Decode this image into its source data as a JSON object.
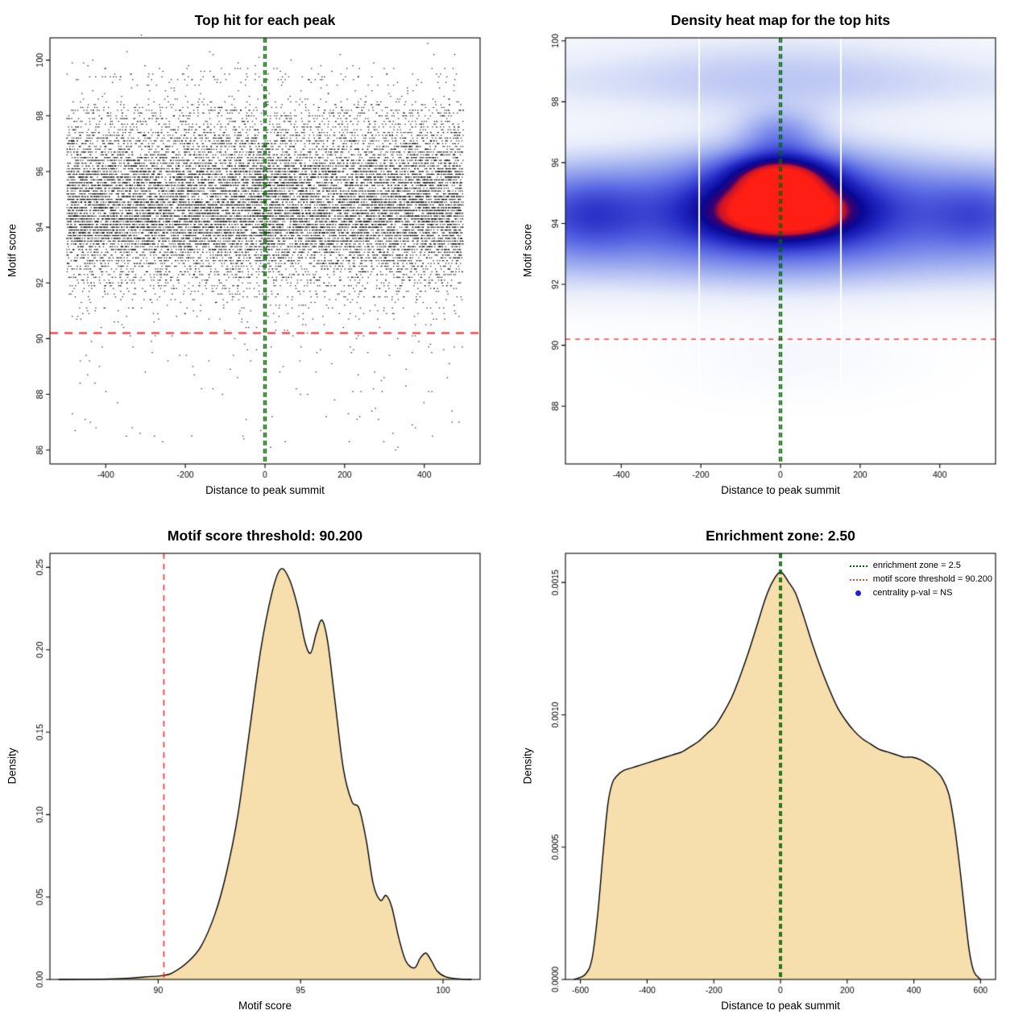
{
  "colors": {
    "threshold": "#ff2020",
    "zone": "#006400",
    "area_fill": "#f6dfad",
    "curve": "#000000",
    "point": "rgba(0,0,0,0.85)"
  },
  "chart_data": [
    {
      "type": "scatter",
      "title": "Top hit for each peak",
      "xlabel": "Distance to peak summit",
      "ylabel": "Motif score",
      "xlim": [
        -540,
        540
      ],
      "ylim": [
        85.5,
        100.8
      ],
      "xticks": [
        -400,
        -200,
        0,
        200,
        400
      ],
      "yticks": [
        86,
        88,
        90,
        92,
        94,
        96,
        98,
        100
      ],
      "x_range": [
        -498,
        498
      ],
      "n_points": 16000,
      "seed": 20,
      "score_step": 0.1,
      "outlier_fraction": 0.004,
      "outlier_range": [
        86,
        90.3
      ],
      "threshold_y": 90.2,
      "zone_x": [
        -2.5,
        2.5
      ]
    },
    {
      "type": "heatmap",
      "title": "Density heat map for the top hits",
      "xlabel": "Distance to peak summit",
      "ylabel": "Motif score",
      "xlim": [
        -540,
        540
      ],
      "ylim": [
        86.1,
        100.1
      ],
      "xticks": [
        -400,
        -200,
        0,
        200,
        400
      ],
      "yticks": [
        88,
        90,
        92,
        94,
        96,
        98,
        100
      ],
      "threshold_y": 90.2,
      "zone_x": [
        -2.5,
        2.5
      ],
      "white_lines_x": [
        -205,
        152
      ],
      "blobs": [
        {
          "x": 0,
          "sx": 3000,
          "y": 94.5,
          "sy": 1.25,
          "a": 0.34
        },
        {
          "x": 0,
          "sx": 230,
          "y": 94.6,
          "sy": 1.35,
          "a": 0.36
        },
        {
          "x": 5,
          "sx": 120,
          "y": 94.4,
          "sy": 0.62,
          "a": 0.56
        },
        {
          "x": 0,
          "sx": 95,
          "y": 95.65,
          "sy": 0.5,
          "a": 0.5
        },
        {
          "x": 0,
          "sx": 70,
          "y": 96.95,
          "sy": 0.55,
          "a": 0.22
        },
        {
          "x": 0,
          "sx": 3000,
          "y": 98.6,
          "sy": 0.75,
          "a": 0.1
        },
        {
          "x": 0,
          "sx": 300,
          "y": 98.7,
          "sy": 0.9,
          "a": 0.08
        },
        {
          "x": 0,
          "sx": 400,
          "y": 100,
          "sy": 0.8,
          "a": 0.06
        },
        {
          "x": 0,
          "sx": 3000,
          "y": 92.8,
          "sy": 1.0,
          "a": 0.12
        },
        {
          "x": -480,
          "sx": 90,
          "y": 94.3,
          "sy": 0.9,
          "a": 0.18
        },
        {
          "x": 490,
          "sx": 80,
          "y": 94.3,
          "sy": 0.8,
          "a": 0.14
        },
        {
          "x": 30,
          "sx": 200,
          "y": 89.5,
          "sy": 0.8,
          "a": 0.04
        }
      ],
      "color_stops": [
        [
          0,
          255,
          255,
          255
        ],
        [
          0.1,
          232,
          237,
          250
        ],
        [
          0.25,
          166,
          180,
          240
        ],
        [
          0.45,
          90,
          105,
          228
        ],
        [
          0.62,
          35,
          40,
          195
        ],
        [
          0.75,
          8,
          8,
          150
        ],
        [
          0.84,
          60,
          0,
          110
        ],
        [
          0.9,
          200,
          20,
          40
        ],
        [
          1,
          255,
          30,
          20
        ]
      ]
    },
    {
      "type": "area",
      "title": "Motif score threshold: 90.200",
      "xlabel": "Motif score",
      "ylabel": "Density",
      "xlim": [
        86.2,
        101.3
      ],
      "ylim": [
        0,
        0.2585
      ],
      "xticks": [
        90,
        95,
        100
      ],
      "yticks": [
        0,
        0.05,
        0.1,
        0.15,
        0.2,
        0.25
      ],
      "ytick_labels": [
        "0.00",
        "0.05",
        "0.10",
        "0.15",
        "0.20",
        "0.25"
      ],
      "threshold_x": 90.2,
      "curve": [
        [
          86.5,
          0
        ],
        [
          88,
          0.0002
        ],
        [
          89,
          0.0008
        ],
        [
          89.5,
          0.0015
        ],
        [
          90,
          0.002
        ],
        [
          90.2,
          0.0025
        ],
        [
          90.5,
          0.004
        ],
        [
          91,
          0.01
        ],
        [
          91.5,
          0.02
        ],
        [
          92,
          0.04
        ],
        [
          92.4,
          0.065
        ],
        [
          92.8,
          0.1
        ],
        [
          93.2,
          0.15
        ],
        [
          93.6,
          0.2
        ],
        [
          94,
          0.235
        ],
        [
          94.3,
          0.249
        ],
        [
          94.6,
          0.243
        ],
        [
          94.9,
          0.226
        ],
        [
          95.15,
          0.205
        ],
        [
          95.35,
          0.198
        ],
        [
          95.55,
          0.21
        ],
        [
          95.75,
          0.218
        ],
        [
          95.95,
          0.205
        ],
        [
          96.2,
          0.17
        ],
        [
          96.5,
          0.128
        ],
        [
          96.8,
          0.108
        ],
        [
          97.05,
          0.104
        ],
        [
          97.3,
          0.085
        ],
        [
          97.55,
          0.058
        ],
        [
          97.8,
          0.048
        ],
        [
          98,
          0.051
        ],
        [
          98.2,
          0.044
        ],
        [
          98.45,
          0.025
        ],
        [
          98.7,
          0.011
        ],
        [
          99,
          0.007
        ],
        [
          99.2,
          0.013
        ],
        [
          99.4,
          0.016
        ],
        [
          99.6,
          0.011
        ],
        [
          99.8,
          0.005
        ],
        [
          100.1,
          0.0015
        ],
        [
          100.6,
          0.0003
        ],
        [
          101,
          0
        ]
      ]
    },
    {
      "type": "area",
      "title": "Enrichment zone: 2.50",
      "xlabel": "Distance to peak summit",
      "ylabel": "Density",
      "xlim": [
        -645,
        645
      ],
      "ylim": [
        0,
        0.00161
      ],
      "xticks": [
        -600,
        -400,
        -200,
        0,
        200,
        400,
        600
      ],
      "yticks": [
        0,
        0.0005,
        0.001,
        0.0015
      ],
      "ytick_labels": [
        "0.0000",
        "0.0005",
        "0.0010",
        "0.0015"
      ],
      "zone_x": [
        -2.5,
        2.5
      ],
      "legend": [
        {
          "type": "dotted-line",
          "color": "#006400",
          "label": "enrichment zone = 2.5"
        },
        {
          "type": "dotted-line",
          "color": "#ff3b30",
          "label": "motif score threshold = 90.200"
        },
        {
          "type": "dot",
          "color": "#2222cc",
          "label": "centrality p-val = NS"
        }
      ],
      "curve": [
        [
          -620,
          0
        ],
        [
          -585,
          2e-05
        ],
        [
          -565,
          8e-05
        ],
        [
          -548,
          0.00025
        ],
        [
          -532,
          0.00048
        ],
        [
          -518,
          0.00066
        ],
        [
          -505,
          0.00074
        ],
        [
          -490,
          0.00077
        ],
        [
          -470,
          0.00079
        ],
        [
          -445,
          0.0008
        ],
        [
          -420,
          0.00081
        ],
        [
          -395,
          0.00082
        ],
        [
          -370,
          0.00083
        ],
        [
          -345,
          0.00084
        ],
        [
          -320,
          0.00085
        ],
        [
          -295,
          0.00086
        ],
        [
          -270,
          0.00088
        ],
        [
          -245,
          0.0009
        ],
        [
          -220,
          0.00093
        ],
        [
          -195,
          0.00096
        ],
        [
          -170,
          0.00101
        ],
        [
          -145,
          0.00107
        ],
        [
          -120,
          0.00115
        ],
        [
          -95,
          0.00124
        ],
        [
          -70,
          0.00134
        ],
        [
          -45,
          0.00144
        ],
        [
          -25,
          0.0015
        ],
        [
          0,
          0.00154
        ],
        [
          25,
          0.0015
        ],
        [
          45,
          0.00146
        ],
        [
          70,
          0.00137
        ],
        [
          95,
          0.00127
        ],
        [
          120,
          0.00118
        ],
        [
          145,
          0.0011
        ],
        [
          170,
          0.00103
        ],
        [
          195,
          0.00098
        ],
        [
          220,
          0.00094
        ],
        [
          245,
          0.00091
        ],
        [
          270,
          0.00089
        ],
        [
          295,
          0.00087
        ],
        [
          320,
          0.00086
        ],
        [
          345,
          0.00085
        ],
        [
          370,
          0.00084
        ],
        [
          395,
          0.00084
        ],
        [
          420,
          0.00083
        ],
        [
          445,
          0.00081
        ],
        [
          465,
          0.00079
        ],
        [
          485,
          0.00076
        ],
        [
          505,
          0.0007
        ],
        [
          522,
          0.00058
        ],
        [
          538,
          0.00042
        ],
        [
          552,
          0.00026
        ],
        [
          566,
          0.00011
        ],
        [
          580,
          3e-05
        ],
        [
          600,
          0
        ]
      ]
    }
  ]
}
